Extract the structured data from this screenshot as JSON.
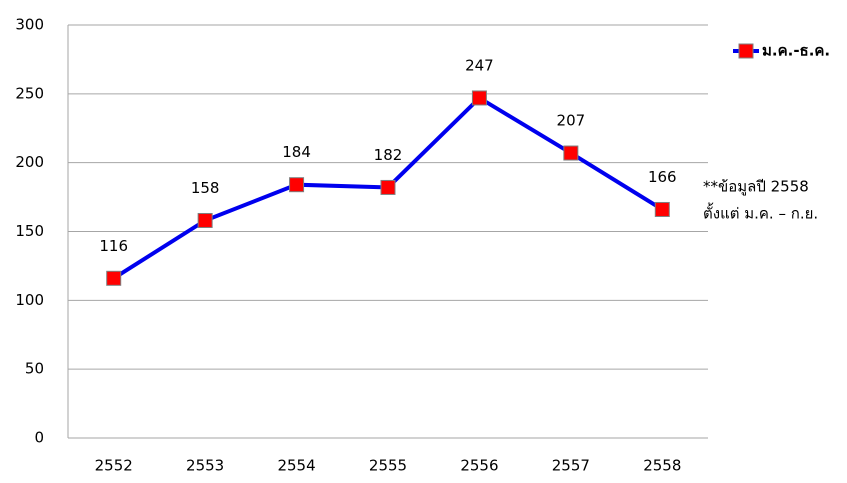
{
  "chart_data": {
    "type": "line",
    "categories": [
      "2552",
      "2553",
      "2554",
      "2555",
      "2556",
      "2557",
      "2558"
    ],
    "series": [
      {
        "name": "ม.ค.-ธ.ค.",
        "color": "#0000ee",
        "marker_color": "#ff0000",
        "values": [
          116,
          158,
          184,
          182,
          247,
          207,
          166
        ]
      }
    ],
    "ylim": [
      0,
      300
    ],
    "yticks": [
      0,
      50,
      100,
      150,
      200,
      250,
      300
    ],
    "grid": true,
    "legend": "top-right",
    "annotation": [
      "**ข้อมูลปี 2558",
      "ตั้งแต่ ม.ค. – ก.ย."
    ]
  }
}
